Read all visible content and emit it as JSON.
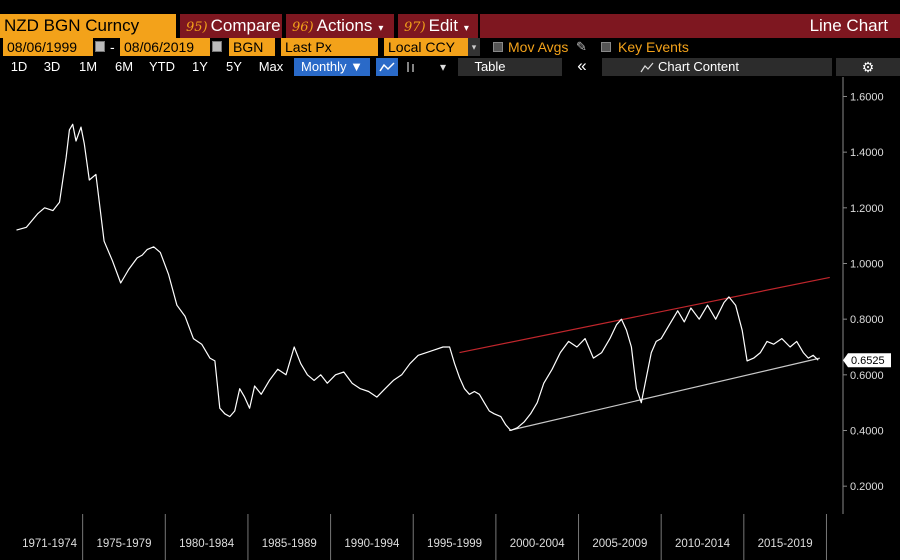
{
  "header": {
    "ticker": "NZD BGN Curncy",
    "menu": [
      {
        "num": "95)",
        "label": "Compare",
        "caret": ""
      },
      {
        "num": "96)",
        "label": "Actions",
        "caret": "▾"
      },
      {
        "num": "97)",
        "label": "Edit",
        "caret": "▾"
      }
    ],
    "chart_label": "Line Chart"
  },
  "settings": {
    "start_date": "08/06/1999",
    "date_sep": "-",
    "end_date": "08/06/2019",
    "source": "BGN",
    "field": "Last Px",
    "currency": "Local CCY",
    "mov_avgs": "Mov Avgs",
    "key_events": "Key Events"
  },
  "toolbar": {
    "ranges": [
      "1D",
      "3D",
      "1M",
      "6M",
      "YTD",
      "1Y",
      "5Y",
      "Max"
    ],
    "period": "Monthly ▼",
    "table": "Table",
    "collapse": "«",
    "chart_content": "Chart Content",
    "settings_icon": "gear-icon",
    "line_icon": "line-chart-icon",
    "bar_icon": "bar-chart-icon"
  },
  "chart_data": {
    "type": "line",
    "series": [
      {
        "x": [
          1971.0,
          1971.6,
          1972.3,
          1972.7,
          1973.2,
          1973.6,
          1974.0,
          1974.2,
          1974.4,
          1974.6,
          1974.9,
          1975.1,
          1975.4,
          1975.8,
          1976.3,
          1976.8,
          1977.3,
          1977.8,
          1978.3,
          1978.6,
          1978.9,
          1979.3,
          1979.7,
          1980.2,
          1980.7,
          1981.2,
          1981.7,
          1982.2,
          1982.7,
          1983.0,
          1983.3,
          1983.6,
          1983.9,
          1984.2,
          1984.5,
          1984.8,
          1985.1,
          1985.4,
          1985.8,
          1986.3,
          1986.8,
          1987.3,
          1987.8,
          1988.2,
          1988.6,
          1989.0,
          1989.4,
          1989.8,
          1990.3,
          1990.8,
          1991.3,
          1991.8,
          1992.3,
          1992.8,
          1993.3,
          1993.8,
          1994.3,
          1994.8,
          1995.3,
          1995.8,
          1996.3,
          1996.8,
          1997.2,
          1997.5,
          1997.8,
          1998.1,
          1998.4,
          1998.7,
          1999.0,
          1999.3,
          1999.6,
          1999.9,
          2000.3,
          2000.6,
          2000.9,
          2001.3,
          2001.7,
          2002.1,
          2002.5,
          2002.9,
          2003.4,
          2003.9,
          2004.4,
          2004.9,
          2005.4,
          2005.9,
          2006.4,
          2006.9,
          2007.3,
          2007.6,
          2007.9,
          2008.2,
          2008.5,
          2008.8,
          2009.1,
          2009.4,
          2009.7,
          2010.0,
          2010.5,
          2011.0,
          2011.4,
          2011.8,
          2012.3,
          2012.8,
          2013.3,
          2013.8,
          2014.1,
          2014.5,
          2014.9,
          2015.2,
          2015.6,
          2016.0,
          2016.4,
          2016.8,
          2017.3,
          2017.8,
          2018.2,
          2018.6,
          2018.9,
          2019.2,
          2019.5
        ],
        "y": [
          1.12,
          1.13,
          1.18,
          1.2,
          1.19,
          1.22,
          1.38,
          1.48,
          1.5,
          1.44,
          1.49,
          1.43,
          1.3,
          1.32,
          1.08,
          1.01,
          0.93,
          0.98,
          1.02,
          1.03,
          1.05,
          1.06,
          1.04,
          0.96,
          0.85,
          0.81,
          0.73,
          0.71,
          0.66,
          0.65,
          0.48,
          0.46,
          0.45,
          0.47,
          0.55,
          0.52,
          0.48,
          0.56,
          0.53,
          0.58,
          0.62,
          0.6,
          0.7,
          0.64,
          0.6,
          0.58,
          0.6,
          0.57,
          0.6,
          0.61,
          0.57,
          0.55,
          0.54,
          0.52,
          0.55,
          0.58,
          0.6,
          0.64,
          0.67,
          0.68,
          0.69,
          0.7,
          0.7,
          0.64,
          0.59,
          0.55,
          0.53,
          0.54,
          0.53,
          0.5,
          0.47,
          0.46,
          0.45,
          0.42,
          0.4,
          0.41,
          0.43,
          0.46,
          0.5,
          0.57,
          0.62,
          0.68,
          0.72,
          0.7,
          0.73,
          0.66,
          0.68,
          0.73,
          0.78,
          0.8,
          0.76,
          0.7,
          0.55,
          0.5,
          0.59,
          0.68,
          0.72,
          0.73,
          0.78,
          0.83,
          0.79,
          0.84,
          0.8,
          0.85,
          0.8,
          0.86,
          0.88,
          0.85,
          0.76,
          0.65,
          0.66,
          0.68,
          0.72,
          0.71,
          0.73,
          0.7,
          0.72,
          0.68,
          0.66,
          0.67,
          0.6525
        ]
      }
    ],
    "xlim": [
      1970.0,
      2021.0
    ],
    "ylim": [
      0.1,
      1.67
    ],
    "xticks": [
      "1971-1974",
      "1975-1979",
      "1980-1984",
      "1985-1989",
      "1990-1994",
      "1995-1999",
      "2000-2004",
      "2005-2009",
      "2010-2014",
      "2015-2019"
    ],
    "yticks": [
      0.2,
      0.4,
      0.6,
      0.8,
      1.0,
      1.2,
      1.4,
      1.6
    ],
    "ytick_labels": [
      "0.2000",
      "0.4000",
      "0.6000",
      "0.8000",
      "1.0000",
      "1.2000",
      "1.4000",
      "1.6000"
    ],
    "last_value_label": "0.6525",
    "trendlines": [
      {
        "x": [
          1997.8,
          2020.2
        ],
        "y": [
          0.68,
          0.95
        ],
        "color": "#c0262c"
      },
      {
        "x": [
          2000.8,
          2019.6
        ],
        "y": [
          0.4,
          0.66
        ],
        "color": "#c8c8c8"
      }
    ],
    "line_color": "#ffffff",
    "grid": false
  }
}
